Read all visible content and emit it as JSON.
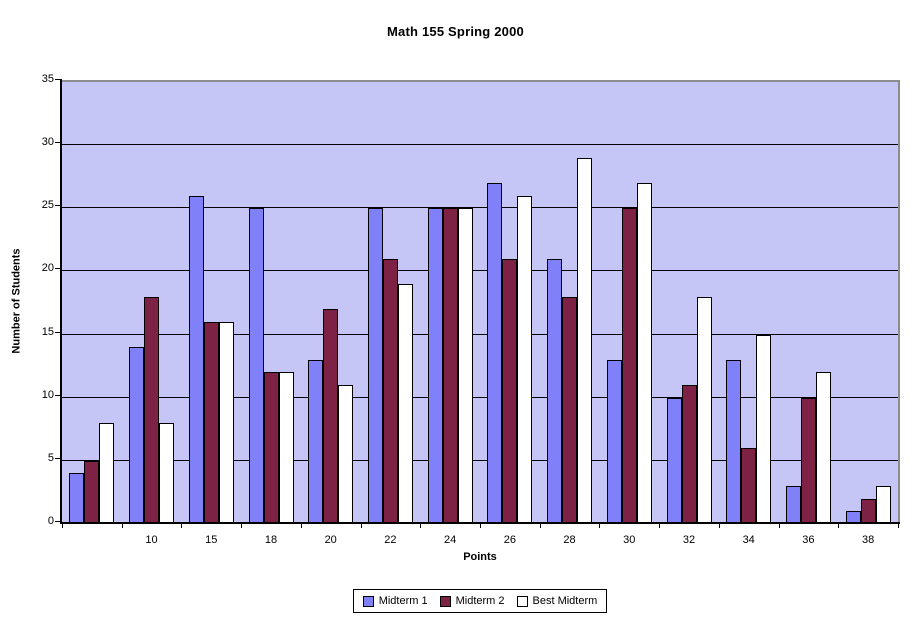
{
  "chart_data": {
    "type": "bar",
    "title": "Math 155  Spring 2000",
    "xlabel": "Points",
    "ylabel": "Number of Students",
    "ylim": [
      0,
      35
    ],
    "yticks": [
      0,
      5,
      10,
      15,
      20,
      25,
      30,
      35
    ],
    "grid": true,
    "legend_position": "bottom",
    "plot_bg_color": "#c6c6f6",
    "categories": [
      "",
      "10",
      "15",
      "18",
      "20",
      "22",
      "24",
      "26",
      "28",
      "30",
      "32",
      "34",
      "36",
      "38"
    ],
    "series": [
      {
        "name": "Midterm 1",
        "color": "#8080f8",
        "values": [
          4,
          14,
          26,
          25,
          13,
          25,
          25,
          27,
          21,
          13,
          10,
          13,
          3,
          1
        ]
      },
      {
        "name": "Midterm 2",
        "color": "#7d2145",
        "values": [
          5,
          18,
          16,
          12,
          17,
          21,
          25,
          21,
          18,
          25,
          11,
          6,
          10,
          2
        ]
      },
      {
        "name": "Best Midterm",
        "color": "#ffffff",
        "values": [
          8,
          8,
          16,
          12,
          11,
          19,
          25,
          26,
          29,
          27,
          18,
          15,
          12,
          3
        ]
      }
    ]
  }
}
